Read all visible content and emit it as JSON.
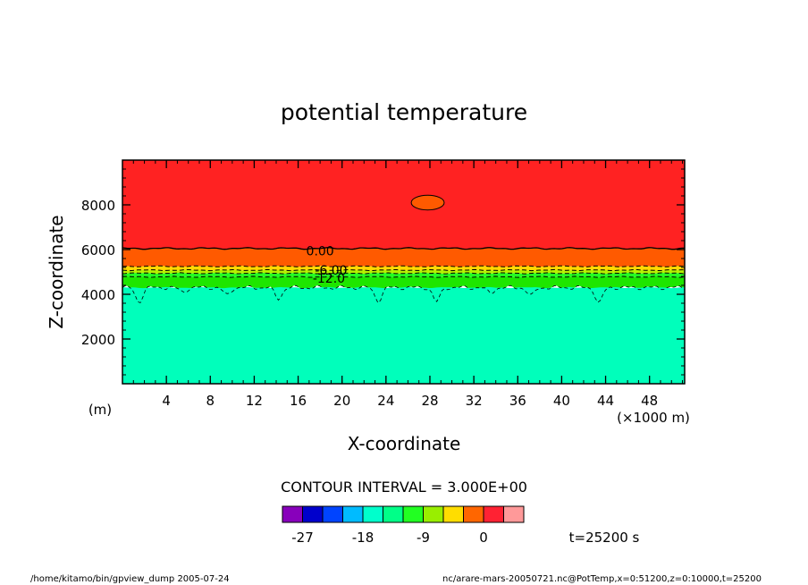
{
  "chart_data": {
    "type": "contour",
    "title": "potential temperature",
    "xlabel": "X-coordinate",
    "ylabel": "Z-coordinate",
    "x_unit_label": "(×1000 m)",
    "y_unit_label": "(m)",
    "xlim": [
      0,
      51.2
    ],
    "ylim": [
      0,
      10000
    ],
    "x_ticks": [
      4,
      8,
      12,
      16,
      20,
      24,
      28,
      32,
      36,
      40,
      44,
      48
    ],
    "x_minor_step": 1,
    "y_ticks": [
      2000,
      4000,
      6000,
      8000
    ],
    "y_minor_step": 400,
    "contour_interval_label": "CONTOUR INTERVAL = 3.000E+00",
    "contour_labels": [
      {
        "text": "0.00",
        "x": 18.0,
        "y": 5950
      },
      {
        "text": "-6.00",
        "x": 19.0,
        "y": 5080
      },
      {
        "text": "-12.0",
        "x": 18.8,
        "y": 4720
      }
    ],
    "layers": [
      {
        "level": "top (>0)",
        "color": "#ff2222",
        "from_z": 6050,
        "to_z": 10000
      },
      {
        "level": "-3..0",
        "color": "#ff5a00",
        "from_z": 5250,
        "to_z": 6050
      },
      {
        "level": "-6..-3",
        "color": "#ffd800",
        "from_z": 5080,
        "to_z": 5250
      },
      {
        "level": "-9..-6",
        "color": "#b6f000",
        "from_z": 4940,
        "to_z": 5080
      },
      {
        "level": "-12..-9",
        "color": "#22ff22",
        "from_z": 4780,
        "to_z": 4940
      },
      {
        "level": "-15..-12",
        "color": "#1ee600",
        "from_z": 4300,
        "to_z": 4780
      },
      {
        "level": "-18..-15",
        "color": "#00ffbb",
        "from_z": 0,
        "to_z": 4300
      }
    ],
    "blob": {
      "color": "#ff5a00",
      "x": 27.8,
      "z": 8100,
      "rx": 1.5,
      "rz": 330
    },
    "colorbar": {
      "colors": [
        "#8800bb",
        "#0000cc",
        "#0044ff",
        "#00bbff",
        "#00ffcc",
        "#00ff88",
        "#22ff22",
        "#99ee00",
        "#ffdd00",
        "#ff6600",
        "#ff2233",
        "#ff9999"
      ],
      "tick_labels": [
        "-27",
        "-18",
        "-9",
        "0"
      ],
      "tick_positions": [
        1,
        4,
        7,
        10
      ]
    },
    "time_label": "t=25200 s"
  },
  "footer": {
    "left": "/home/kitamo/bin/gpview_dump  2005-07-24",
    "right": "nc/arare-mars-20050721.nc@PotTemp,x=0:51200,z=0:10000,t=25200"
  }
}
